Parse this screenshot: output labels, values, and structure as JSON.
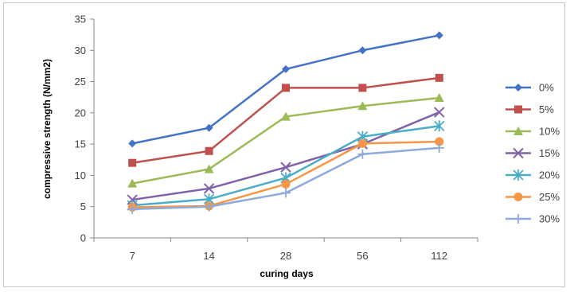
{
  "chart_data": {
    "type": "line",
    "title": "",
    "xlabel": "curing days",
    "ylabel": "compressive strength (N/mm2)",
    "categories": [
      "7",
      "14",
      "28",
      "56",
      "112"
    ],
    "ylim": [
      0,
      35
    ],
    "yticks": [
      0,
      5,
      10,
      15,
      20,
      25,
      30,
      35
    ],
    "grid": false,
    "legend": "right",
    "series": [
      {
        "name": "0%",
        "color": "#4472C4",
        "marker": "diamond",
        "values": [
          15.1,
          17.6,
          27.0,
          30.0,
          32.4
        ]
      },
      {
        "name": "5%",
        "color": "#C0504D",
        "marker": "square",
        "values": [
          12.0,
          13.9,
          24.0,
          24.0,
          25.6
        ]
      },
      {
        "name": "10%",
        "color": "#9BBB59",
        "marker": "triangle",
        "values": [
          8.7,
          11.0,
          19.4,
          21.1,
          22.4
        ]
      },
      {
        "name": "15%",
        "color": "#7F62A8",
        "marker": "x",
        "values": [
          6.1,
          7.9,
          11.3,
          15.0,
          20.1
        ]
      },
      {
        "name": "20%",
        "color": "#4BACC6",
        "marker": "star",
        "values": [
          5.2,
          6.2,
          9.6,
          16.2,
          17.9
        ]
      },
      {
        "name": "25%",
        "color": "#F79646",
        "marker": "circle",
        "values": [
          4.9,
          5.1,
          8.6,
          15.1,
          15.4
        ]
      },
      {
        "name": "30%",
        "color": "#8EA9DB",
        "marker": "plus",
        "values": [
          4.6,
          5.0,
          7.2,
          13.4,
          14.4
        ]
      }
    ]
  }
}
